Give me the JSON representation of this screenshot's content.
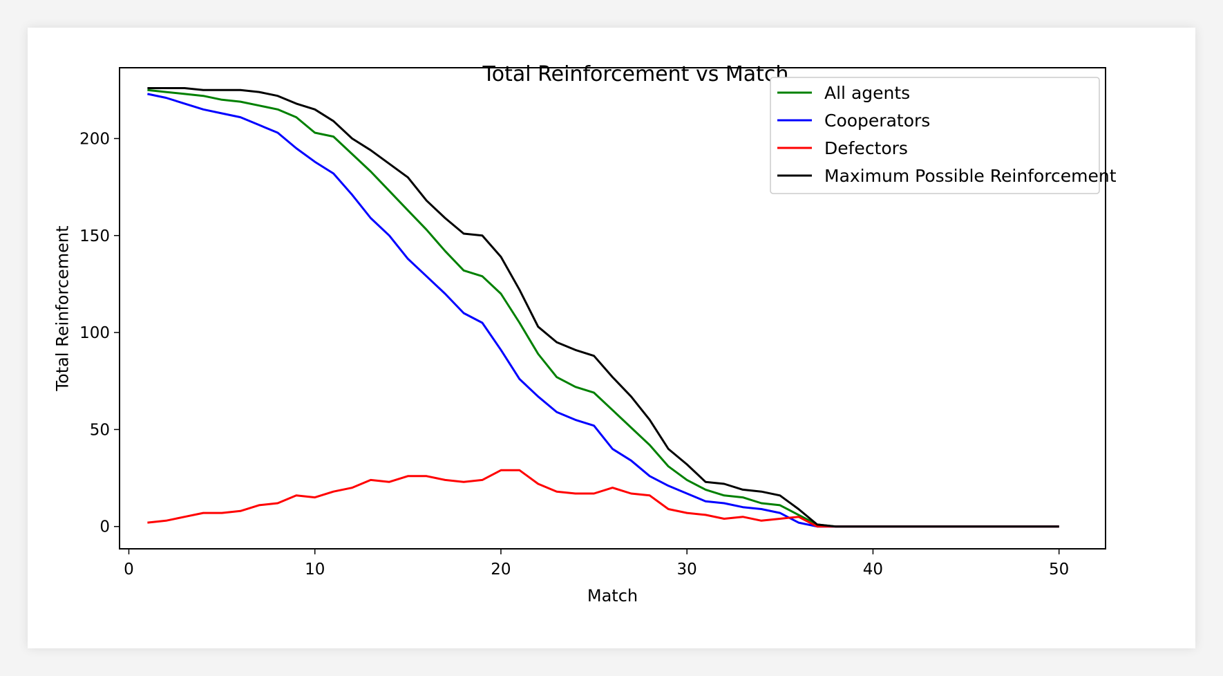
{
  "chart_data": {
    "type": "line",
    "title": "Total Reinforcement vs Match",
    "xlabel": "Match",
    "ylabel": "Total Reinforcement",
    "xlim": [
      -0.5,
      52.5
    ],
    "ylim": [
      -11.5,
      236.5
    ],
    "xticks": [
      0,
      10,
      20,
      30,
      40,
      50
    ],
    "yticks": [
      0,
      50,
      100,
      150,
      200
    ],
    "grid": false,
    "legend_position": "top-right",
    "x": [
      1,
      2,
      3,
      4,
      5,
      6,
      7,
      8,
      9,
      10,
      11,
      12,
      13,
      14,
      15,
      16,
      17,
      18,
      19,
      20,
      21,
      22,
      23,
      24,
      25,
      26,
      27,
      28,
      29,
      30,
      31,
      32,
      33,
      34,
      35,
      36,
      37,
      38,
      39,
      40,
      41,
      42,
      43,
      44,
      45,
      46,
      47,
      48,
      49,
      50
    ],
    "series": [
      {
        "name": "All agents",
        "color": "#008000",
        "values": [
          225,
          224,
          223,
          222,
          220,
          219,
          217,
          215,
          211,
          203,
          201,
          192,
          183,
          173,
          163,
          153,
          142,
          132,
          129,
          120,
          105,
          89,
          77,
          72,
          69,
          60,
          51,
          42,
          31,
          24,
          19,
          16,
          15,
          12,
          11,
          6,
          1,
          0,
          0,
          0,
          0,
          0,
          0,
          0,
          0,
          0,
          0,
          0,
          0,
          0
        ]
      },
      {
        "name": "Cooperators",
        "color": "#0000ff",
        "values": [
          223,
          221,
          218,
          215,
          213,
          211,
          207,
          203,
          195,
          188,
          182,
          171,
          159,
          150,
          138,
          129,
          120,
          110,
          105,
          91,
          76,
          67,
          59,
          55,
          52,
          40,
          34,
          26,
          21,
          17,
          13,
          12,
          10,
          9,
          7,
          2,
          0,
          0,
          0,
          0,
          0,
          0,
          0,
          0,
          0,
          0,
          0,
          0,
          0,
          0
        ]
      },
      {
        "name": "Defectors",
        "color": "#ff0000",
        "values": [
          2,
          3,
          5,
          7,
          7,
          8,
          11,
          12,
          16,
          15,
          18,
          20,
          24,
          23,
          26,
          26,
          24,
          23,
          24,
          29,
          29,
          22,
          18,
          17,
          17,
          20,
          17,
          16,
          9,
          7,
          6,
          4,
          5,
          3,
          4,
          5,
          0,
          0,
          0,
          0,
          0,
          0,
          0,
          0,
          0,
          0,
          0,
          0,
          0,
          0
        ]
      },
      {
        "name": "Maximum Possible Reinforcement",
        "color": "#000000",
        "values": [
          226,
          226,
          226,
          225,
          225,
          225,
          224,
          222,
          218,
          215,
          209,
          200,
          194,
          187,
          180,
          168,
          159,
          151,
          150,
          139,
          122,
          103,
          95,
          91,
          88,
          77,
          67,
          55,
          40,
          32,
          23,
          22,
          19,
          18,
          16,
          9,
          1,
          0,
          0,
          0,
          0,
          0,
          0,
          0,
          0,
          0,
          0,
          0,
          0,
          0
        ]
      }
    ]
  }
}
